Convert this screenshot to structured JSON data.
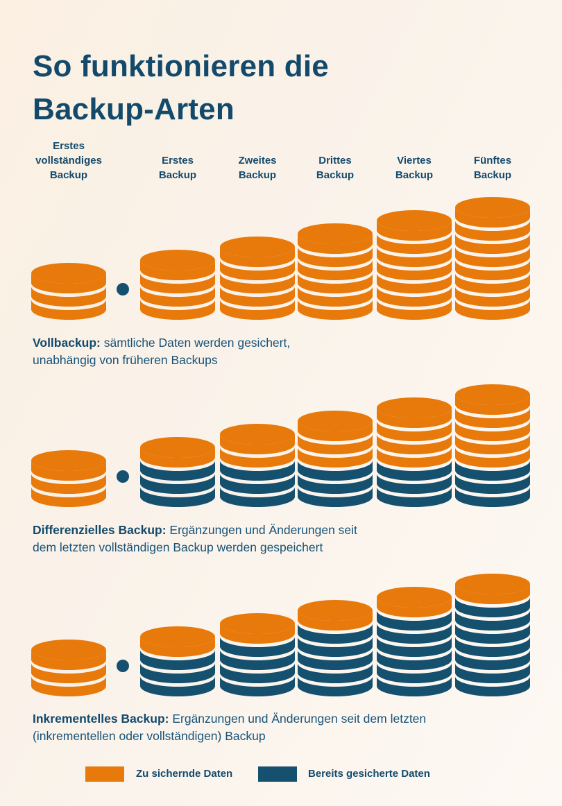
{
  "page": {
    "background": "#faf2e9",
    "accent_orange": "#e8790b",
    "accent_navy": "#15506f",
    "text_navy": "#134a6c"
  },
  "title": {
    "line1": "So funktionieren die",
    "line2": "Backup-Arten"
  },
  "columns": [
    "Erstes\nvollständiges\nBackup",
    "Erstes\nBackup",
    "Zweites\nBackup",
    "Drittes\nBackup",
    "Viertes\nBackup",
    "Fünftes\nBackup"
  ],
  "rows": [
    {
      "id": "vollbackup",
      "caption_bold": "Vollbackup:",
      "caption_rest": " sämtliche Daten werden gesichert,\nunabhängig von früheren Backups",
      "stacks": [
        {
          "new": 3,
          "saved": 0
        },
        {
          "new": 4,
          "saved": 0
        },
        {
          "new": 5,
          "saved": 0
        },
        {
          "new": 6,
          "saved": 0
        },
        {
          "new": 7,
          "saved": 0
        },
        {
          "new": 8,
          "saved": 0
        }
      ]
    },
    {
      "id": "differenzielles-backup",
      "caption_bold": "Differenzielles Backup:",
      "caption_rest": " Ergänzungen und Änderungen seit\ndem letzten vollständigen Backup werden gespeichert",
      "stacks": [
        {
          "new": 3,
          "saved": 0
        },
        {
          "new": 1,
          "saved": 3
        },
        {
          "new": 2,
          "saved": 3
        },
        {
          "new": 3,
          "saved": 3
        },
        {
          "new": 4,
          "saved": 3
        },
        {
          "new": 5,
          "saved": 3
        }
      ]
    },
    {
      "id": "inkrementelles-backup",
      "caption_bold": "Inkrementelles Backup:",
      "caption_rest": " Ergänzungen und Änderungen seit dem letzten\n(inkrementellen oder vollständigen) Backup",
      "stacks": [
        {
          "new": 3,
          "saved": 0
        },
        {
          "new": 1,
          "saved": 3
        },
        {
          "new": 1,
          "saved": 4
        },
        {
          "new": 1,
          "saved": 5
        },
        {
          "new": 1,
          "saved": 6
        },
        {
          "new": 1,
          "saved": 7
        }
      ]
    }
  ],
  "legend": [
    {
      "key": "new",
      "color": "#e8790b",
      "label": "Zu sichernde Daten"
    },
    {
      "key": "saved",
      "color": "#15506f",
      "label": "Bereits gesicherte Daten"
    }
  ]
}
